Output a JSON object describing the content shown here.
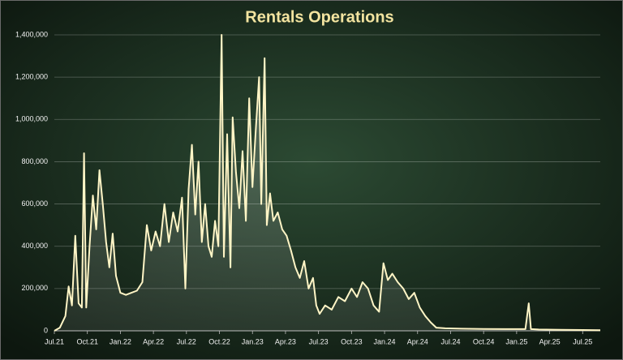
{
  "chart_data": {
    "type": "line",
    "title": "Rentals Operations",
    "color": "#fff5c6",
    "x": [
      0,
      0.5,
      1,
      1.3,
      1.6,
      1.9,
      2.2,
      2.5,
      2.7,
      2.9,
      3.2,
      3.5,
      3.8,
      4.1,
      4.4,
      4.7,
      5,
      5.3,
      5.6,
      6,
      6.5,
      7,
      7.5,
      8,
      8.4,
      8.8,
      9.2,
      9.6,
      10,
      10.4,
      10.8,
      11.2,
      11.6,
      11.9,
      12.2,
      12.5,
      12.8,
      13.1,
      13.4,
      13.7,
      14,
      14.3,
      14.6,
      14.9,
      15.2,
      15.4,
      15.7,
      16,
      16.2,
      16.5,
      16.8,
      17.1,
      17.4,
      17.7,
      18,
      18.3,
      18.6,
      18.8,
      19.1,
      19.3,
      19.6,
      19.9,
      20.3,
      20.7,
      21.1,
      21.5,
      21.9,
      22.3,
      22.7,
      23.1,
      23.5,
      23.8,
      24.1,
      24.6,
      25.2,
      25.8,
      26.4,
      27,
      27.5,
      28,
      28.5,
      29,
      29.5,
      29.9,
      30.3,
      30.7,
      31.2,
      31.7,
      32.2,
      32.7,
      33.2,
      33.7,
      34.2,
      34.7,
      35.5,
      37,
      39,
      41,
      42.8,
      43.1,
      43.3,
      44,
      46,
      48,
      49.6
    ],
    "values": [
      0,
      15000,
      70000,
      210000,
      120000,
      450000,
      130000,
      110000,
      840000,
      110000,
      400000,
      640000,
      480000,
      760000,
      600000,
      420000,
      300000,
      460000,
      260000,
      180000,
      170000,
      180000,
      190000,
      230000,
      500000,
      380000,
      470000,
      400000,
      600000,
      420000,
      560000,
      470000,
      630000,
      200000,
      670000,
      880000,
      550000,
      800000,
      420000,
      600000,
      400000,
      350000,
      520000,
      400000,
      1400000,
      350000,
      930000,
      300000,
      1010000,
      750000,
      580000,
      850000,
      520000,
      1100000,
      680000,
      950000,
      1200000,
      600000,
      1290000,
      500000,
      650000,
      520000,
      560000,
      480000,
      450000,
      380000,
      300000,
      250000,
      330000,
      200000,
      250000,
      120000,
      80000,
      120000,
      100000,
      160000,
      140000,
      200000,
      160000,
      230000,
      200000,
      120000,
      90000,
      320000,
      240000,
      270000,
      230000,
      200000,
      150000,
      180000,
      110000,
      70000,
      40000,
      15000,
      12000,
      10000,
      9000,
      8000,
      8000,
      130000,
      8000,
      6000,
      5000,
      4000,
      3000
    ],
    "xlim": [
      0,
      49.6
    ],
    "xticks": [
      {
        "value": 0,
        "label": "Jul.21"
      },
      {
        "value": 3,
        "label": "Oct.21"
      },
      {
        "value": 6,
        "label": "Jan.22"
      },
      {
        "value": 9,
        "label": "Apr.22"
      },
      {
        "value": 12,
        "label": "Jul.22"
      },
      {
        "value": 15,
        "label": "Oct.22"
      },
      {
        "value": 18,
        "label": "Jan.23"
      },
      {
        "value": 21,
        "label": "Apr.23"
      },
      {
        "value": 24,
        "label": "Jul.23"
      },
      {
        "value": 27,
        "label": "Oct.23"
      },
      {
        "value": 30,
        "label": "Jan.24"
      },
      {
        "value": 33,
        "label": "Apr.24"
      },
      {
        "value": 36,
        "label": "Jul.24"
      },
      {
        "value": 39,
        "label": "Oct.24"
      },
      {
        "value": 42,
        "label": "Jan.25"
      },
      {
        "value": 45,
        "label": "Apr.25"
      },
      {
        "value": 48,
        "label": "Jul.25"
      }
    ],
    "ylim": [
      0,
      1400000
    ],
    "yticks": [
      0,
      {
        "value": 200000,
        "label": "200,000"
      },
      {
        "value": 400000,
        "label": "400,000"
      },
      {
        "value": 600000,
        "label": "600,000"
      },
      {
        "value": 800000,
        "label": "800,000"
      },
      {
        "value": 1000000,
        "label": "1,000,000"
      },
      {
        "value": 1200000,
        "label": "1,200,000"
      },
      {
        "value": 1400000,
        "label": "1,400,000"
      }
    ],
    "grid": true
  }
}
